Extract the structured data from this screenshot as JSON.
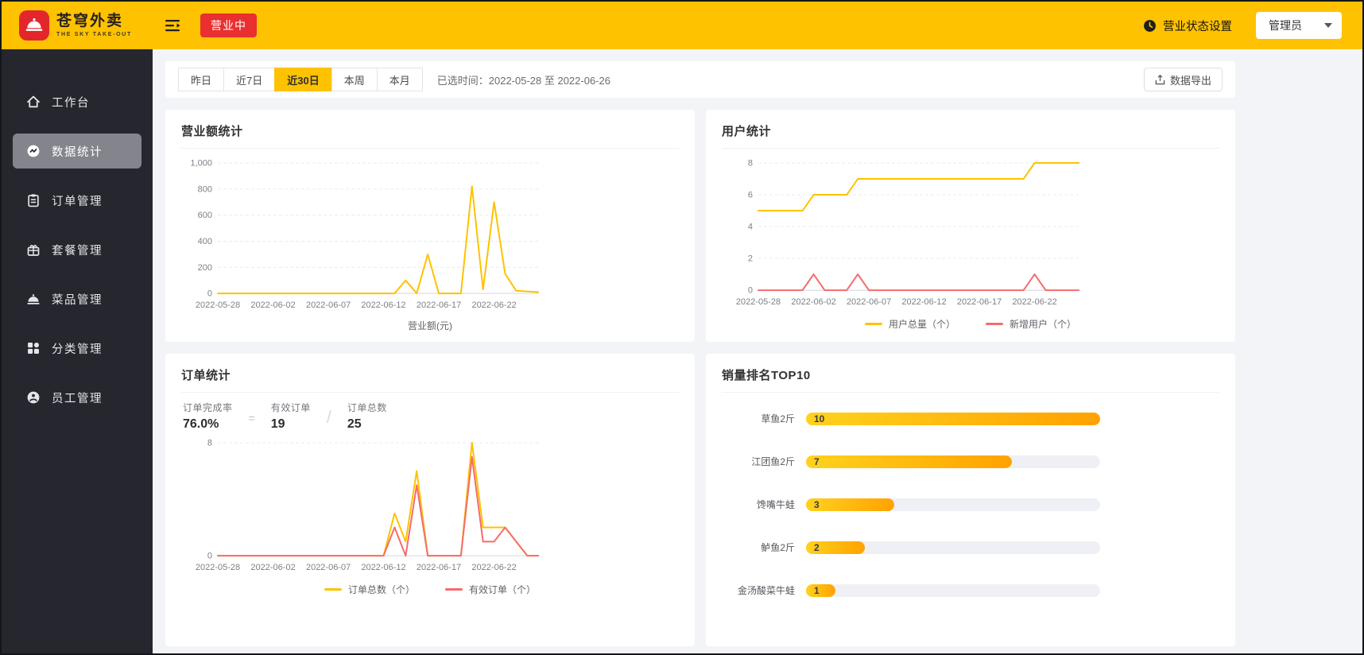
{
  "header": {
    "brand": {
      "title": "苍穹外卖",
      "subtitle": "THE SKY TAKE-OUT"
    },
    "business_status_badge": "营业中",
    "status_setting_label": "营业状态设置",
    "admin_label": "管理员"
  },
  "sidebar": {
    "items": [
      {
        "label": "工作台",
        "icon": "home-icon",
        "active": false
      },
      {
        "label": "数据统计",
        "icon": "stats-icon",
        "active": true
      },
      {
        "label": "订单管理",
        "icon": "order-icon",
        "active": false
      },
      {
        "label": "套餐管理",
        "icon": "combo-icon",
        "active": false
      },
      {
        "label": "菜品管理",
        "icon": "dish-icon",
        "active": false
      },
      {
        "label": "分类管理",
        "icon": "category-icon",
        "active": false
      },
      {
        "label": "员工管理",
        "icon": "employee-icon",
        "active": false
      }
    ]
  },
  "filter": {
    "tabs": [
      {
        "label": "昨日",
        "active": false
      },
      {
        "label": "近7日",
        "active": false
      },
      {
        "label": "近30日",
        "active": true
      },
      {
        "label": "本周",
        "active": false
      },
      {
        "label": "本月",
        "active": false
      }
    ],
    "selected_time": "已选时间：2022-05-28 至 2022-06-26",
    "export_label": "数据导出"
  },
  "colors": {
    "brand_yellow": "#ffc200",
    "badge_red": "#e92f2f",
    "sidebar_dark": "#25262e",
    "line_yellow": "#ffc200",
    "line_red": "#f56c6c",
    "bar_gradient_start": "#ffd21e",
    "bar_gradient_end": "#ffa200"
  },
  "chart_data": [
    {
      "id": "revenue",
      "type": "line",
      "title": "营业额统计",
      "xlabel": "营业额(元)",
      "ylim": [
        0,
        1000
      ],
      "yticks": [
        0,
        200,
        400,
        600,
        800,
        1000
      ],
      "x": [
        "2022-05-28",
        "2022-05-29",
        "2022-05-30",
        "2022-05-31",
        "2022-06-01",
        "2022-06-02",
        "2022-06-03",
        "2022-06-04",
        "2022-06-05",
        "2022-06-06",
        "2022-06-07",
        "2022-06-08",
        "2022-06-09",
        "2022-06-10",
        "2022-06-11",
        "2022-06-12",
        "2022-06-13",
        "2022-06-14",
        "2022-06-15",
        "2022-06-16",
        "2022-06-17",
        "2022-06-18",
        "2022-06-19",
        "2022-06-20",
        "2022-06-21",
        "2022-06-22",
        "2022-06-23",
        "2022-06-24",
        "2022-06-25",
        "2022-06-26"
      ],
      "xticks": [
        "2022-05-28",
        "2022-06-02",
        "2022-06-07",
        "2022-06-12",
        "2022-06-17",
        "2022-06-22"
      ],
      "series": [
        {
          "name": "营业额",
          "color": "#ffc200",
          "values": [
            0,
            0,
            0,
            0,
            0,
            0,
            0,
            0,
            0,
            0,
            0,
            0,
            0,
            0,
            0,
            0,
            0,
            100,
            0,
            300,
            0,
            0,
            0,
            820,
            30,
            700,
            150,
            20,
            15,
            10
          ]
        }
      ]
    },
    {
      "id": "users",
      "type": "line",
      "title": "用户统计",
      "ylim": [
        0,
        8
      ],
      "yticks": [
        0,
        2,
        4,
        6,
        8
      ],
      "x": [
        "2022-05-28",
        "2022-05-29",
        "2022-05-30",
        "2022-05-31",
        "2022-06-01",
        "2022-06-02",
        "2022-06-03",
        "2022-06-04",
        "2022-06-05",
        "2022-06-06",
        "2022-06-07",
        "2022-06-08",
        "2022-06-09",
        "2022-06-10",
        "2022-06-11",
        "2022-06-12",
        "2022-06-13",
        "2022-06-14",
        "2022-06-15",
        "2022-06-16",
        "2022-06-17",
        "2022-06-18",
        "2022-06-19",
        "2022-06-20",
        "2022-06-21",
        "2022-06-22",
        "2022-06-23",
        "2022-06-24",
        "2022-06-25",
        "2022-06-26"
      ],
      "xticks": [
        "2022-05-28",
        "2022-06-02",
        "2022-06-07",
        "2022-06-12",
        "2022-06-17",
        "2022-06-22"
      ],
      "series": [
        {
          "name": "用户总量（个）",
          "color": "#ffc200",
          "values": [
            5,
            5,
            5,
            5,
            5,
            6,
            6,
            6,
            6,
            7,
            7,
            7,
            7,
            7,
            7,
            7,
            7,
            7,
            7,
            7,
            7,
            7,
            7,
            7,
            7,
            8,
            8,
            8,
            8,
            8
          ]
        },
        {
          "name": "新增用户（个）",
          "color": "#f56c6c",
          "values": [
            0,
            0,
            0,
            0,
            0,
            1,
            0,
            0,
            0,
            1,
            0,
            0,
            0,
            0,
            0,
            0,
            0,
            0,
            0,
            0,
            0,
            0,
            0,
            0,
            0,
            1,
            0,
            0,
            0,
            0
          ]
        }
      ],
      "legend_position": "bottom"
    },
    {
      "id": "orders",
      "type": "line",
      "title": "订单统计",
      "stats": {
        "completion_label": "订单完成率",
        "completion_value": "76.0%",
        "equals_sign": "=",
        "valid_label": "有效订单",
        "valid_value": "19",
        "divider": "/",
        "total_label": "订单总数",
        "total_value": "25"
      },
      "ylim": [
        0,
        8
      ],
      "yticks": [
        0,
        8
      ],
      "x": [
        "2022-05-28",
        "2022-05-29",
        "2022-05-30",
        "2022-05-31",
        "2022-06-01",
        "2022-06-02",
        "2022-06-03",
        "2022-06-04",
        "2022-06-05",
        "2022-06-06",
        "2022-06-07",
        "2022-06-08",
        "2022-06-09",
        "2022-06-10",
        "2022-06-11",
        "2022-06-12",
        "2022-06-13",
        "2022-06-14",
        "2022-06-15",
        "2022-06-16",
        "2022-06-17",
        "2022-06-18",
        "2022-06-19",
        "2022-06-20",
        "2022-06-21",
        "2022-06-22",
        "2022-06-23",
        "2022-06-24",
        "2022-06-25",
        "2022-06-26"
      ],
      "xticks": [
        "2022-05-28",
        "2022-06-02",
        "2022-06-07",
        "2022-06-12",
        "2022-06-17",
        "2022-06-22"
      ],
      "series": [
        {
          "name": "订单总数（个）",
          "color": "#ffc200",
          "values": [
            0,
            0,
            0,
            0,
            0,
            0,
            0,
            0,
            0,
            0,
            0,
            0,
            0,
            0,
            0,
            0,
            3,
            1,
            6,
            0,
            0,
            0,
            0,
            8,
            2,
            2,
            2,
            1,
            0,
            0
          ]
        },
        {
          "name": "有效订单（个）",
          "color": "#f56c6c",
          "values": [
            0,
            0,
            0,
            0,
            0,
            0,
            0,
            0,
            0,
            0,
            0,
            0,
            0,
            0,
            0,
            0,
            2,
            0,
            5,
            0,
            0,
            0,
            0,
            7,
            1,
            1,
            2,
            1,
            0,
            0
          ]
        }
      ],
      "legend_position": "bottom"
    },
    {
      "id": "top10",
      "type": "bar",
      "title": "销量排名TOP10",
      "orientation": "horizontal",
      "categories": [
        "草鱼2斤",
        "江团鱼2斤",
        "馋嘴牛蛙",
        "鲈鱼2斤",
        "金汤酸菜牛蛙"
      ],
      "values": [
        10,
        7,
        3,
        2,
        1
      ],
      "xlim": [
        0,
        10
      ]
    }
  ]
}
